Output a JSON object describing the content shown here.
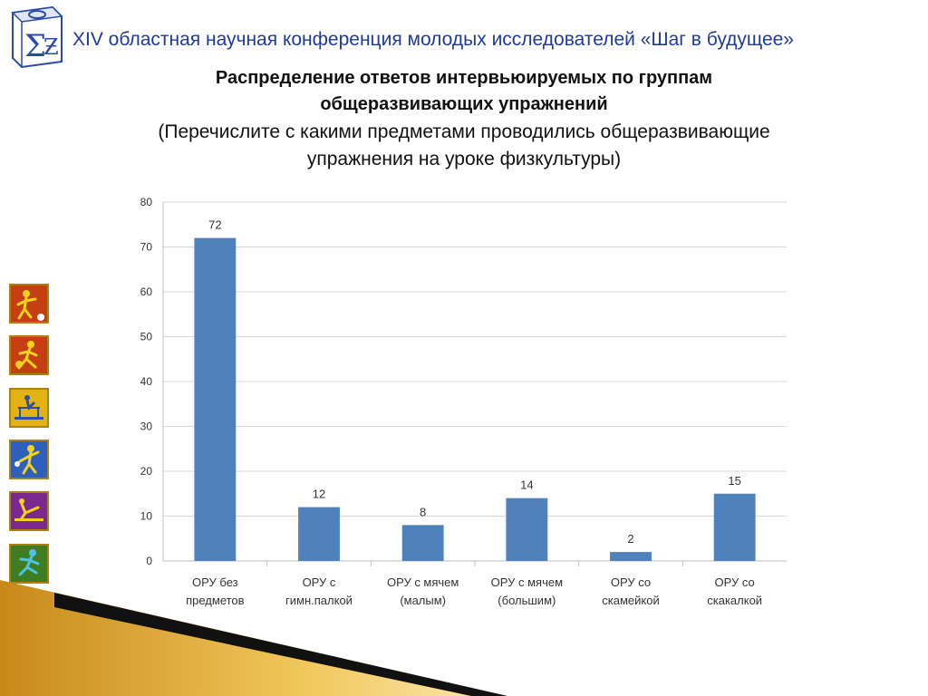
{
  "header": {
    "title": "XIV областная научная конференция молодых исследователей «Шаг в будущее»"
  },
  "slide": {
    "title_line1": "Распределение ответов интервьюируемых по группам",
    "title_line2": "общеразвивающих упражнений",
    "subtitle_line1": "(Перечислите с какими предметами проводились общеразвивающие",
    "subtitle_line2": "упражнения на уроке физкультуры)"
  },
  "colors": {
    "bar": "#4f81bd",
    "header": "#1f3b9a",
    "grid": "#d9d9d9"
  },
  "icons": [
    "figure-ball-icon",
    "figure-runner-icon",
    "figure-gymnast-icon",
    "figure-tennis-icon",
    "figure-kick-icon",
    "figure-jump-icon",
    "figure-throw-icon",
    "figure-pingpong-icon",
    "figure-bowling-icon",
    "figure-hiker-icon"
  ],
  "chart_data": {
    "type": "bar",
    "categories": [
      [
        "ОРУ без",
        "предметов"
      ],
      [
        "ОРУ с",
        "гимн.палкой"
      ],
      [
        "ОРУ с мячем",
        "(малым)"
      ],
      [
        "ОРУ с мячем",
        "(большим)"
      ],
      [
        "ОРУ со",
        "скамейкой"
      ],
      [
        "ОРУ со",
        "скакалкой"
      ]
    ],
    "values": [
      72,
      12,
      8,
      14,
      2,
      15
    ],
    "ylim": [
      0,
      80
    ],
    "yticks": [
      0,
      10,
      20,
      30,
      40,
      50,
      60,
      70,
      80
    ],
    "grid": true,
    "data_labels": true
  }
}
